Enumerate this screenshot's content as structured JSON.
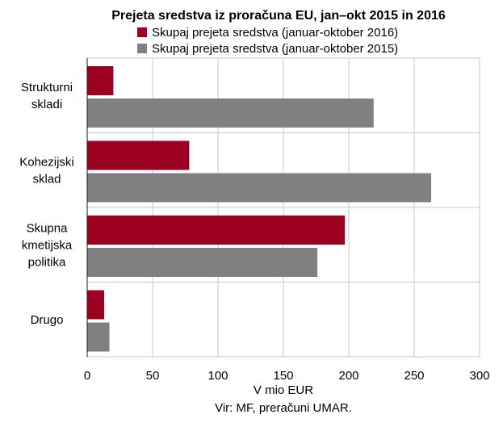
{
  "chart_data": {
    "type": "bar",
    "orientation": "horizontal",
    "title": "Prejeta sredstva iz proračuna EU, jan–okt 2015 in 2016",
    "xlabel": "V mio EUR",
    "source": "Vir: MF, preračuni UMAR.",
    "categories": [
      [
        "Strukturni",
        "skladi"
      ],
      [
        "Kohezijski",
        "sklad"
      ],
      [
        "Skupna",
        "kmetijska",
        "politika"
      ],
      [
        "Drugo"
      ]
    ],
    "series": [
      {
        "name": "Skupaj prejeta sredstva (januar-oktober 2016)",
        "color": "#9b0020",
        "values": [
          20,
          78,
          197,
          13
        ]
      },
      {
        "name": "Skupaj prejeta sredstva (januar-oktober 2015)",
        "color": "#808080",
        "values": [
          219,
          263,
          176,
          17
        ]
      }
    ],
    "xlim": [
      0,
      300
    ],
    "xticks": [
      0,
      50,
      100,
      150,
      200,
      250,
      300
    ],
    "grid": true,
    "legend_position": "top"
  }
}
